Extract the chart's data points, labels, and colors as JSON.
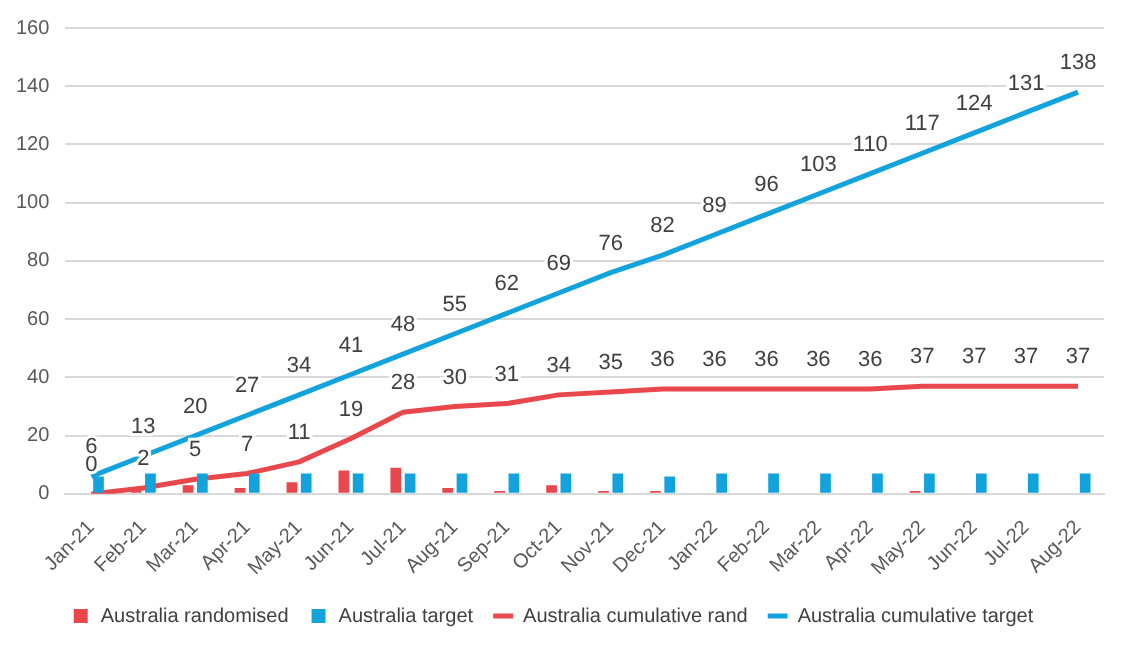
{
  "chart_data": {
    "type": "bar",
    "categories": [
      "Jan-21",
      "Feb-21",
      "Mar-21",
      "Apr-21",
      "May-21",
      "Jun-21",
      "Jul-21",
      "Aug-21",
      "Sep-21",
      "Oct-21",
      "Nov-21",
      "Dec-21",
      "Jan-22",
      "Feb-22",
      "Mar-22",
      "Apr-22",
      "May-22",
      "Jun-22",
      "Jul-22",
      "Aug-22"
    ],
    "series": [
      {
        "name": "Australia randomised",
        "color": "#e8474c",
        "values": [
          0,
          2,
          3,
          2,
          4,
          8,
          9,
          2,
          1,
          3,
          1,
          1,
          0,
          0,
          0,
          0,
          1,
          0,
          0,
          0
        ]
      },
      {
        "name": "Australia target",
        "color": "#12a3dc",
        "values": [
          6,
          7,
          7,
          7,
          7,
          7,
          7,
          7,
          7,
          7,
          7,
          6,
          7,
          7,
          7,
          7,
          7,
          7,
          7,
          7
        ]
      },
      {
        "name": "Australia cumulative rand",
        "type": "line",
        "color": "#e8474c",
        "values": [
          0,
          2,
          5,
          7,
          11,
          19,
          28,
          30,
          31,
          34,
          35,
          36,
          36,
          36,
          36,
          36,
          37,
          37,
          37,
          37
        ],
        "value_labels": [
          "0",
          "2",
          "5",
          "7",
          "11",
          "19",
          "28",
          "30",
          "31",
          "34",
          "35",
          "36",
          "36",
          "36",
          "36",
          "36",
          "37",
          "37",
          "37",
          "37"
        ]
      },
      {
        "name": "Australia cumulative target",
        "type": "line",
        "color": "#12a3dc",
        "values": [
          6,
          13,
          20,
          27,
          34,
          41,
          48,
          55,
          62,
          69,
          76,
          82,
          89,
          96,
          103,
          110,
          117,
          124,
          131,
          138
        ],
        "value_labels": [
          "6",
          "13",
          "20",
          "27",
          "34",
          "41",
          "48",
          "55",
          "62",
          "69",
          "76",
          "82",
          "89",
          "96",
          "103",
          "110",
          "117",
          "124",
          "131",
          "138"
        ]
      }
    ],
    "ylim": [
      0,
      160
    ],
    "yticks": [
      0,
      20,
      40,
      60,
      80,
      100,
      120,
      140,
      160
    ],
    "grid": "y",
    "legend": "bottom",
    "marker": "none"
  }
}
